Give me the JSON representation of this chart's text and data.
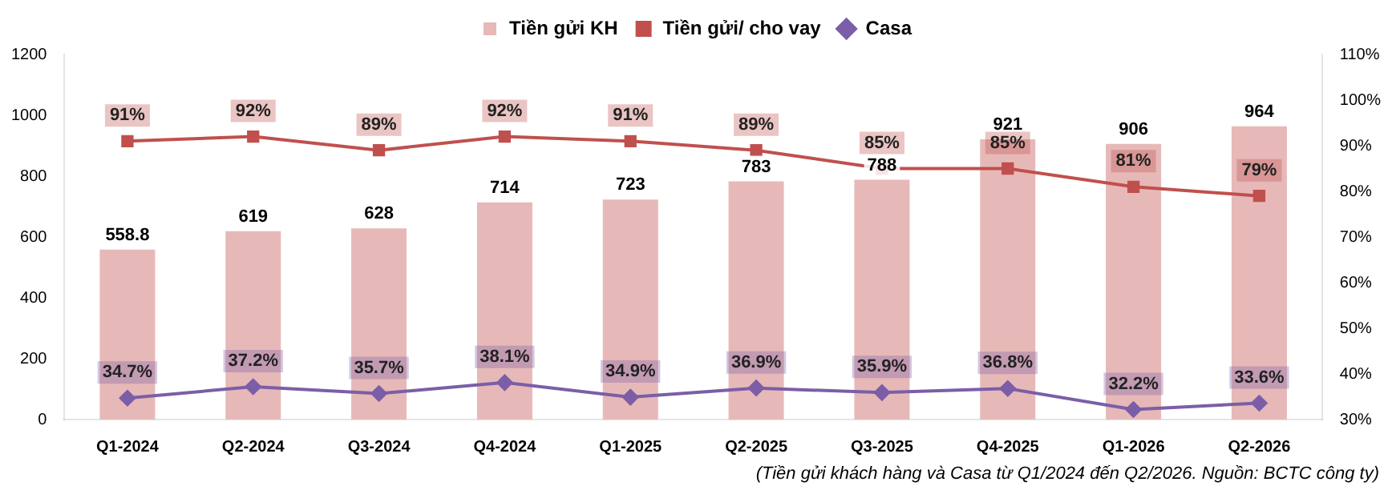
{
  "chart_data": {
    "type": "bar",
    "categories": [
      "Q1-2024",
      "Q2-2024",
      "Q3-2024",
      "Q4-2024",
      "Q1-2025",
      "Q2-2025",
      "Q3-2025",
      "Q4-2025",
      "Q1-2026",
      "Q2-2026"
    ],
    "series": [
      {
        "name": "Tiền gửi KH",
        "color": "#e6b9b8",
        "values": [
          558.8,
          619,
          628,
          714,
          723,
          783,
          788,
          921,
          906,
          964
        ],
        "value_labels": [
          "558.8",
          "619",
          "628",
          "714",
          "723",
          "783",
          "788",
          "921",
          "906",
          "964"
        ]
      },
      {
        "name": "Tiền gửi/ cho vay",
        "type": "line",
        "axis": "y2",
        "marker": "square",
        "color": "#c0504d",
        "values": [
          91,
          92,
          89,
          92,
          91,
          89,
          85,
          85,
          81,
          79
        ],
        "value_labels": [
          "91%",
          "92%",
          "89%",
          "92%",
          "91%",
          "89%",
          "85%",
          "85%",
          "81%",
          "79%"
        ]
      },
      {
        "name": "Casa",
        "type": "line",
        "axis": "y2",
        "marker": "diamond",
        "color": "#7b5ea7",
        "values": [
          34.7,
          37.2,
          35.7,
          38.1,
          34.9,
          36.9,
          35.9,
          36.8,
          32.2,
          33.6
        ],
        "value_labels": [
          "34.7%",
          "37.2%",
          "35.7%",
          "38.1%",
          "34.9%",
          "36.9%",
          "35.9%",
          "36.8%",
          "32.2%",
          "33.6%"
        ]
      }
    ],
    "ylim": [
      0,
      1200
    ],
    "yticks": [
      0,
      200,
      400,
      600,
      800,
      1000,
      1200
    ],
    "y2lim": [
      30,
      110
    ],
    "y2ticks": [
      {
        "value": 30,
        "label": "30%"
      },
      {
        "value": 40,
        "label": "40%"
      },
      {
        "value": 50,
        "label": "50%"
      },
      {
        "value": 60,
        "label": "60%"
      },
      {
        "value": 70,
        "label": "70%"
      },
      {
        "value": 80,
        "label": "80%"
      },
      {
        "value": 90,
        "label": "90%"
      },
      {
        "value": 100,
        "label": "100%"
      },
      {
        "value": 110,
        "label": "110%"
      }
    ],
    "legend": "top",
    "annotations": [
      "(Tiền gửi khách hàng và Casa từ Q1/2024 đến Q2/2026. Nguồn: BCTC công ty)"
    ]
  }
}
